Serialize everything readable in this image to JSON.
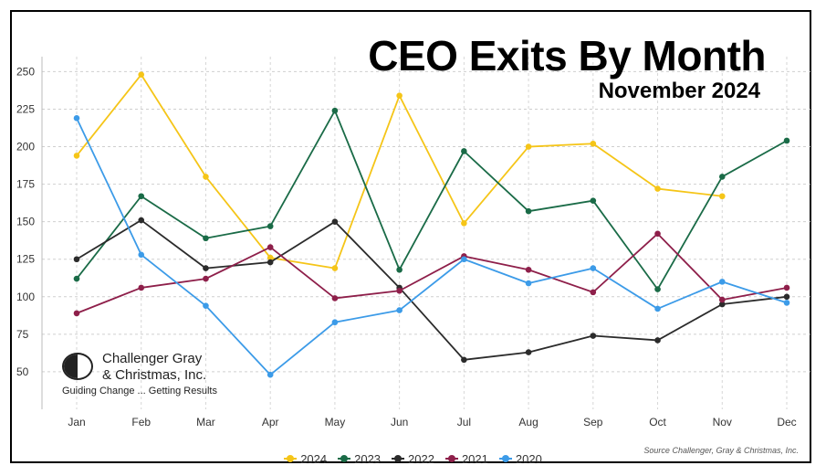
{
  "title": "CEO Exits By Month",
  "subtitle": "November 2024",
  "source": "Source Challenger, Gray & Christmas, Inc.",
  "logo": {
    "line1": "Challenger Gray",
    "line2": "& Christmas, Inc.",
    "tagline": "Guiding Change ... Getting Results"
  },
  "chart_data": {
    "type": "line",
    "title": "CEO Exits By Month",
    "subtitle": "November 2024",
    "categories": [
      "Jan",
      "Feb",
      "Mar",
      "Apr",
      "May",
      "Jun",
      "Jul",
      "Aug",
      "Sep",
      "Oct",
      "Nov",
      "Dec"
    ],
    "ylim": [
      25,
      260
    ],
    "yticks": [
      50,
      75,
      100,
      125,
      150,
      175,
      200,
      225,
      250
    ],
    "grid": true,
    "legend_position": "bottom",
    "series": [
      {
        "name": "2024",
        "color": "#f5c518",
        "values": [
          194,
          248,
          180,
          126,
          119,
          234,
          149,
          200,
          202,
          172,
          167,
          null
        ]
      },
      {
        "name": "2023",
        "color": "#1a6b47",
        "values": [
          112,
          167,
          139,
          147,
          224,
          118,
          197,
          157,
          164,
          105,
          180,
          204
        ]
      },
      {
        "name": "2022",
        "color": "#2b2b2b",
        "values": [
          125,
          151,
          119,
          123,
          150,
          106,
          58,
          63,
          74,
          71,
          95,
          100
        ]
      },
      {
        "name": "2021",
        "color": "#8e1f4a",
        "values": [
          89,
          106,
          112,
          133,
          99,
          104,
          127,
          118,
          103,
          142,
          98,
          106
        ]
      },
      {
        "name": "2020",
        "color": "#3c9be8",
        "values": [
          219,
          128,
          94,
          48,
          83,
          91,
          125,
          109,
          119,
          92,
          110,
          96
        ]
      }
    ]
  }
}
